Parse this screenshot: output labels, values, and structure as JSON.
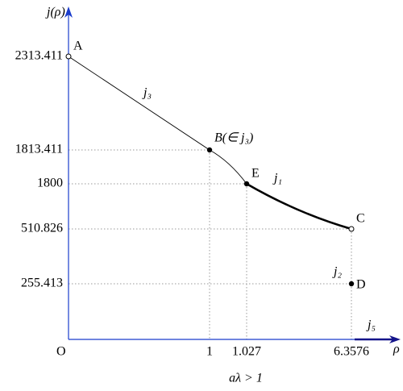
{
  "axes": {
    "y_label": "j(ρ)",
    "x_label": "ρ",
    "origin": "O",
    "x_ticks": [
      "1",
      "1.027",
      "6.3576"
    ],
    "y_ticks": [
      "2313.411",
      "1813.411",
      "1800",
      "510.826",
      "255.413"
    ]
  },
  "points": [
    {
      "label": "A"
    },
    {
      "label": "B(∈ j₃)"
    },
    {
      "label": "E"
    },
    {
      "label": "C"
    },
    {
      "label": "D"
    }
  ],
  "curves": [
    {
      "label": "j₃"
    },
    {
      "label": "j₁"
    },
    {
      "label": "j₂"
    },
    {
      "label": "j₅"
    }
  ],
  "caption": "aλ > 1"
}
